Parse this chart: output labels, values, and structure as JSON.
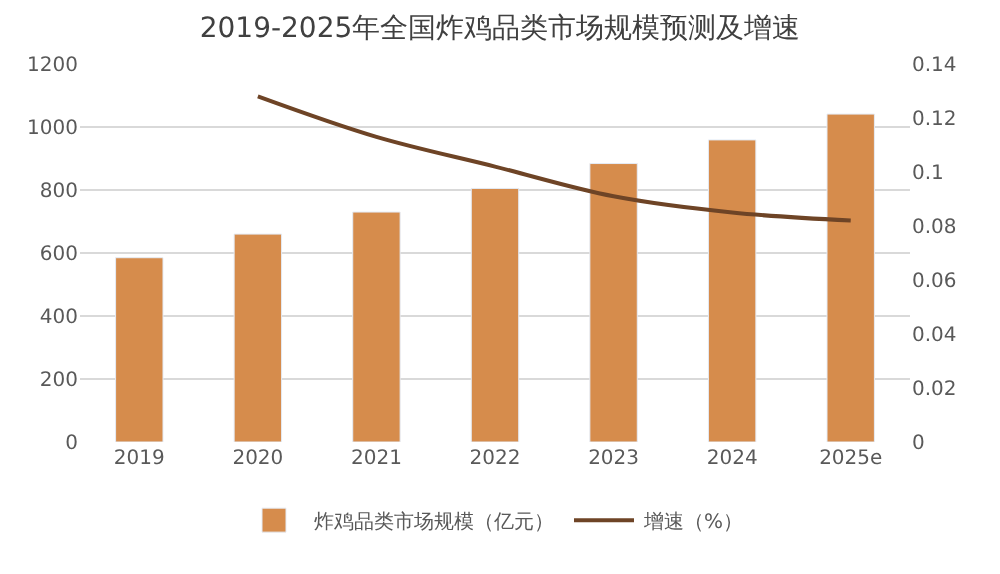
{
  "chart_data": {
    "type": "bar",
    "title": "2019-2025年全国炸鸡品类市场规模预测及增速",
    "categories": [
      "2019",
      "2020",
      "2021",
      "2022",
      "2023",
      "2024",
      "2025e"
    ],
    "series": [
      {
        "name": "炸鸡品类市场规模（亿元）",
        "color": "#d68c4c",
        "values": [
          585,
          660,
          730,
          805,
          884,
          959,
          1041
        ]
      },
      {
        "name": "增速（%）",
        "type": "line",
        "axis": "y2",
        "color": "#6e4426",
        "values": [
          null,
          0.128,
          0.113,
          0.102,
          0.091,
          0.085,
          0.082
        ]
      }
    ],
    "ylim": [
      0,
      1200
    ],
    "yticks": [
      0,
      200,
      400,
      600,
      800,
      1000,
      1200
    ],
    "y2lim": [
      0,
      0.14
    ],
    "y2ticks": [
      0,
      0.02,
      0.04,
      0.06,
      0.08,
      {
        "value": 0.1,
        "label": "0.1"
      },
      0.12,
      0.14
    ],
    "grid": "y",
    "legend": "bottom",
    "marker": "none",
    "line_style": "solid"
  }
}
